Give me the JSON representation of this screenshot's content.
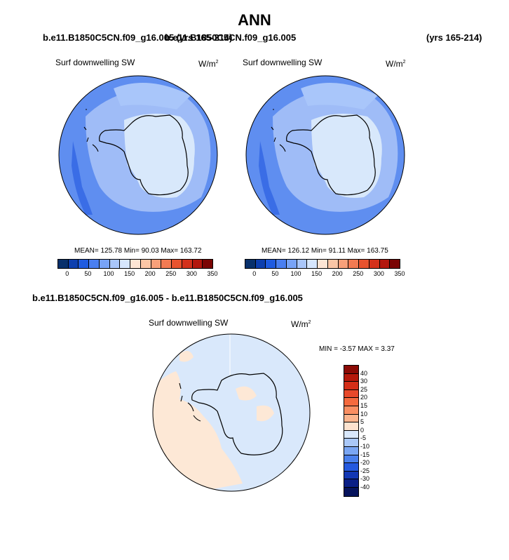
{
  "title": "ANN",
  "top_left_case": "b.e11.B1850C5CN.f09_g16.005 (yrs 165-214)",
  "top_right_case": "b.e11.B1850C5CN.f09_g16.005",
  "top_right_years": "(yrs 165-214)",
  "diff_case": "b.e11.B1850C5CN.f09_g16.005 - b.e11.B1850C5CN.f09_g16.005",
  "panels": {
    "left": {
      "variable": "Surf downwelling SW",
      "units": "W/m",
      "units_exp": "2",
      "stats": "MEAN= 125.78  Min=  90.03  Max= 163.72"
    },
    "right": {
      "variable": "Surf downwelling SW",
      "units": "W/m",
      "units_exp": "2",
      "stats": "MEAN= 126.12  Min=  91.11  Max= 163.75"
    },
    "diff": {
      "variable": "Surf downwelling SW",
      "units": "W/m",
      "units_exp": "2",
      "stats": "MIN =  -3.57 MAX =   3.37"
    }
  },
  "colorbar_abs": {
    "ticks": [
      "0",
      "50",
      "100",
      "150",
      "200",
      "250",
      "300",
      "350"
    ],
    "colors": [
      "#08306b",
      "#0d3fae",
      "#1f5be0",
      "#4a7ff0",
      "#78a3f6",
      "#a9c6fa",
      "#d6e6fd",
      "#fde5d4",
      "#fbc6a6",
      "#f8a07a",
      "#f27a52",
      "#e8532f",
      "#d3311b",
      "#b3170d",
      "#7a0403"
    ]
  },
  "colorbar_diff": {
    "labels": [
      "40",
      "30",
      "25",
      "20",
      "15",
      "10",
      "5",
      "0",
      "-5",
      "-10",
      "-15",
      "-20",
      "-25",
      "-30",
      "-40"
    ],
    "colors": [
      "#8b0a05",
      "#b5180b",
      "#d42e18",
      "#e8492a",
      "#f56a3e",
      "#f98e62",
      "#fbb48d",
      "#fde3cf",
      "#d9e8fb",
      "#aac8f8",
      "#7aa6f3",
      "#4a80ec",
      "#2459df",
      "#1237b4",
      "#0a1f86",
      "#06135c"
    ]
  },
  "colors": {
    "ocean_outer": "#5f8ef0",
    "ocean_mid": "#9fbcf7",
    "ice_light": "#d8e8fb",
    "sector_dark": "#3a6de6",
    "diff_neg": "#d9e8fb",
    "diff_pos": "#fde8d6"
  }
}
